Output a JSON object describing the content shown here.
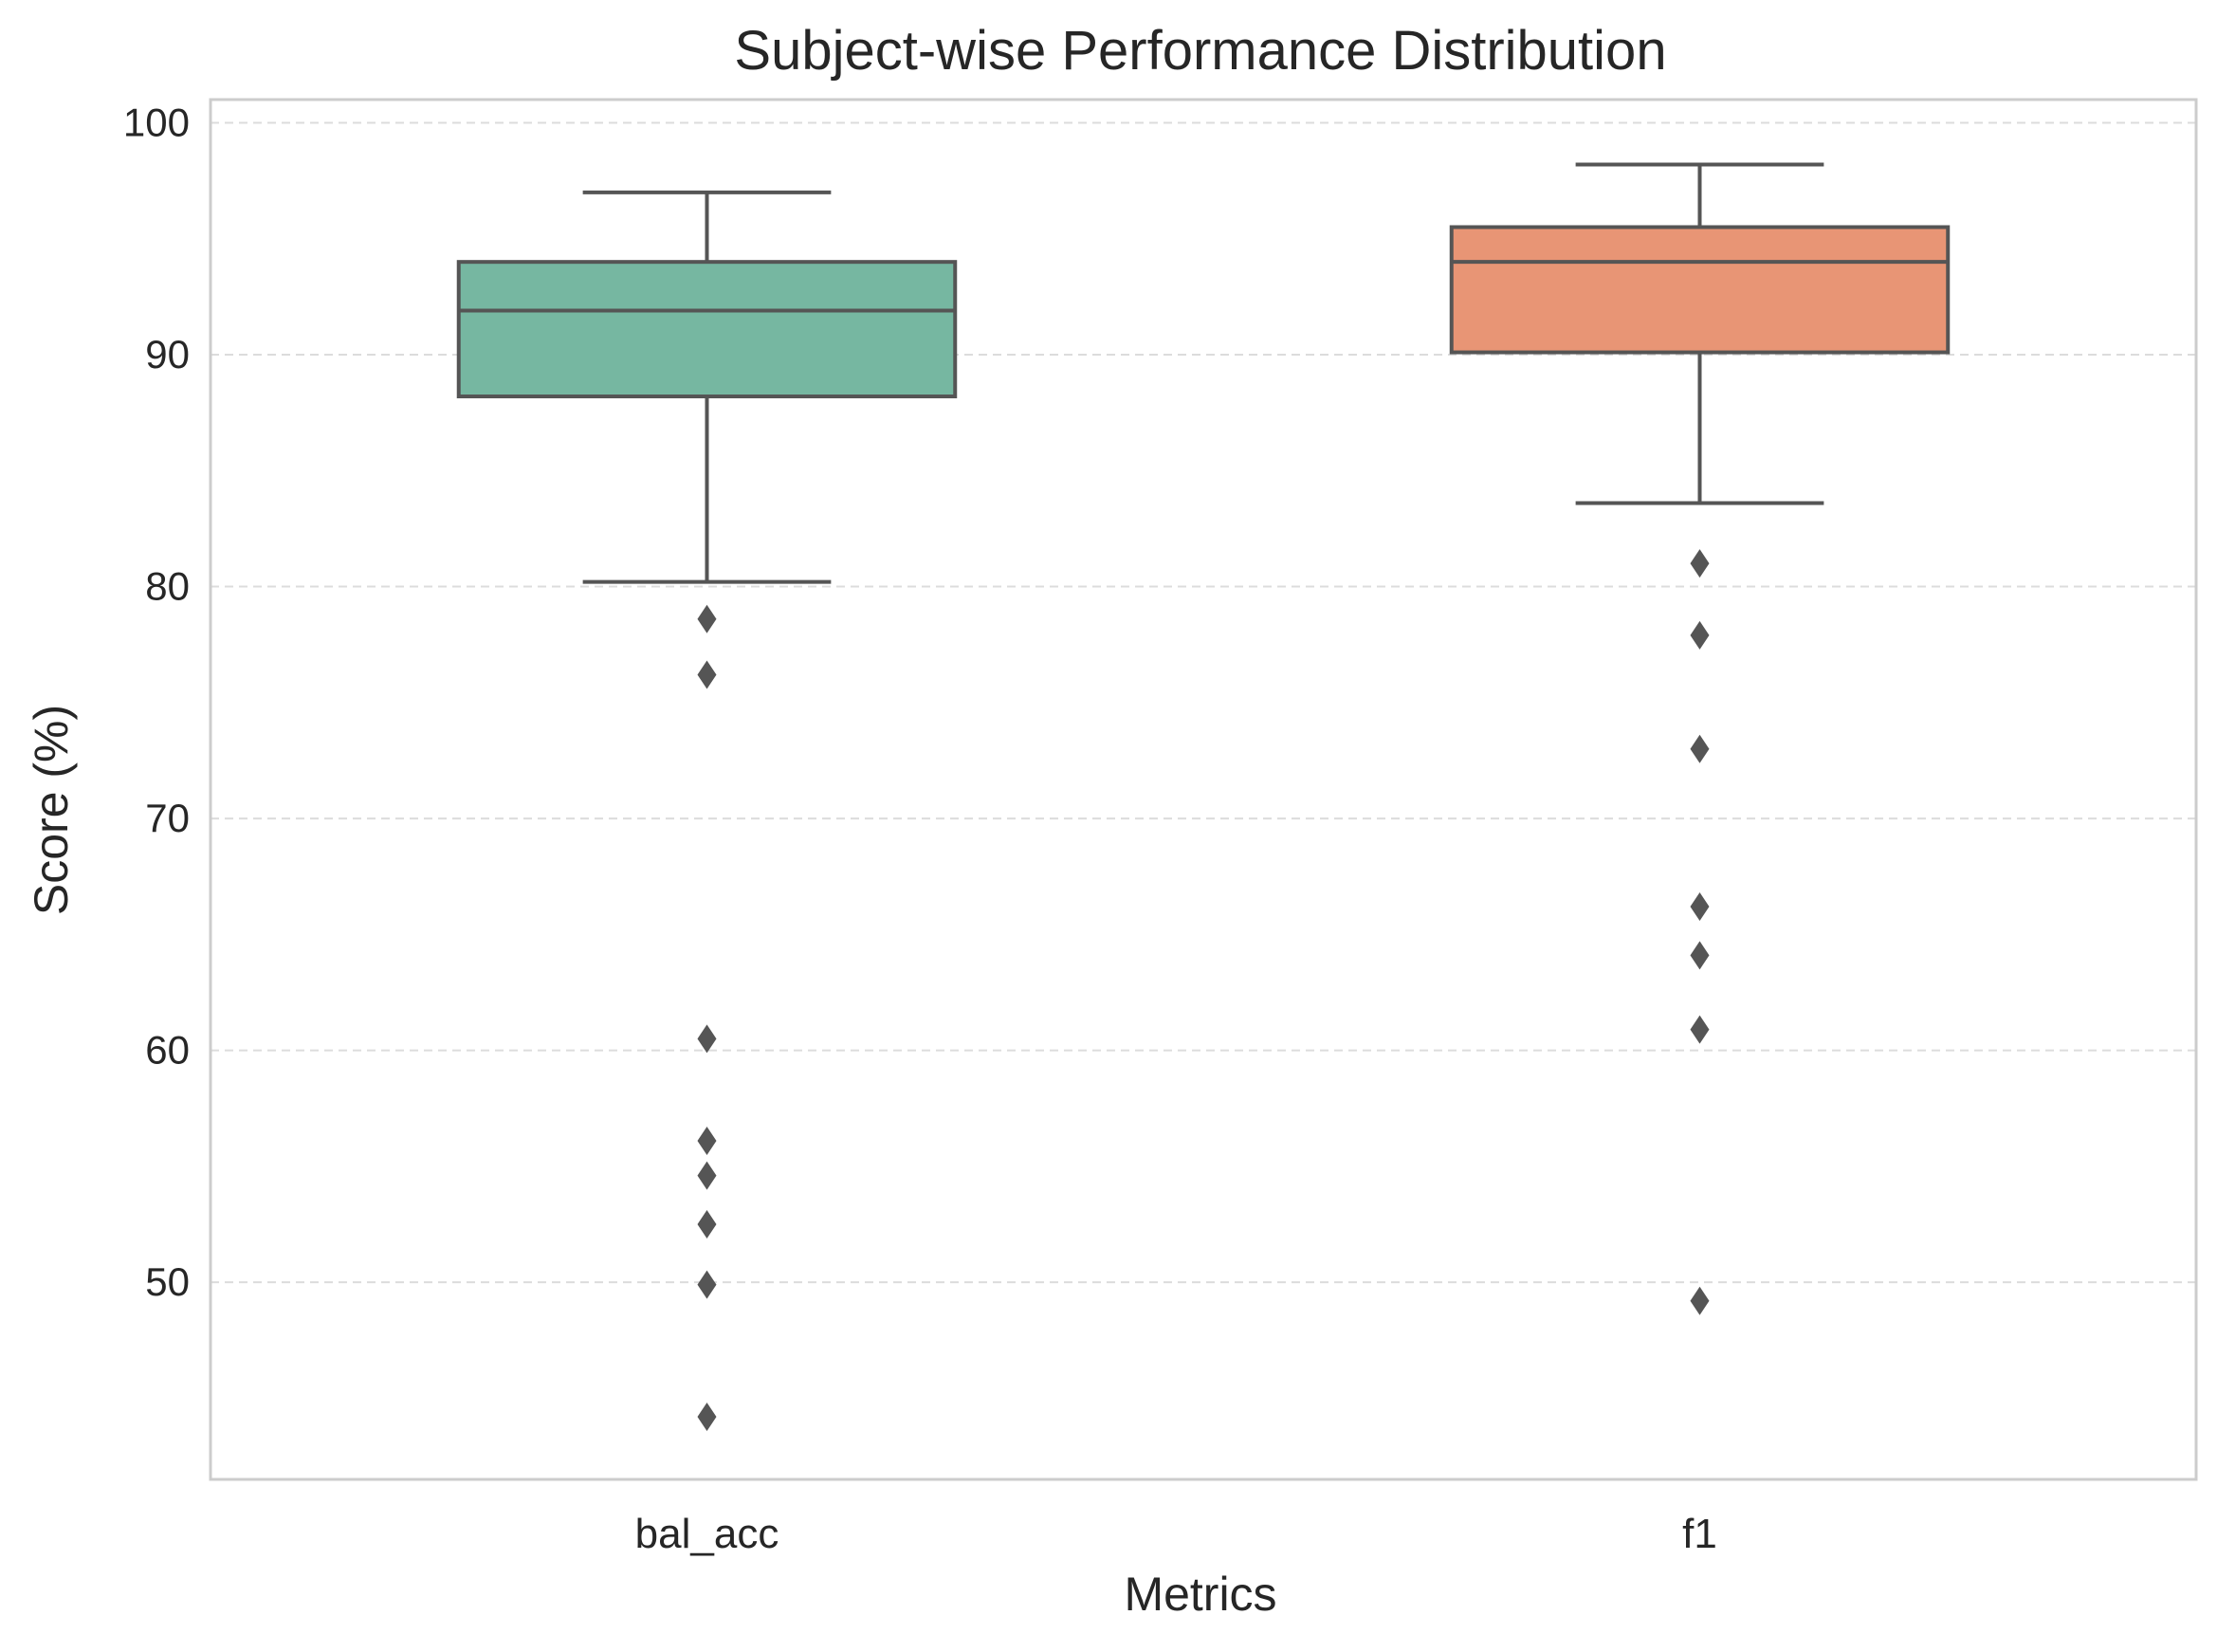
{
  "chart_data": {
    "type": "box",
    "title": "Subject-wise Performance Distribution",
    "xlabel": "Metrics",
    "ylabel": "Score (%)",
    "ylim": [
      41.5,
      101
    ],
    "yticks": [
      50,
      60,
      70,
      80,
      90,
      100
    ],
    "grid": "horizontal-dashed",
    "categories": [
      "bal_acc",
      "f1"
    ],
    "boxes": [
      {
        "category": "bal_acc",
        "color": "#76b7a1",
        "whisker_low": 80.2,
        "q1": 88.2,
        "median": 91.9,
        "q3": 94.0,
        "whisker_high": 97.0,
        "outliers": [
          78.6,
          76.2,
          60.5,
          56.1,
          54.6,
          52.5,
          49.9,
          44.2
        ]
      },
      {
        "category": "f1",
        "color": "#e89575",
        "whisker_low": 83.6,
        "q1": 90.1,
        "median": 94.0,
        "q3": 95.5,
        "whisker_high": 98.2,
        "outliers": [
          81.0,
          77.9,
          73.0,
          66.2,
          64.1,
          60.9,
          49.2
        ]
      }
    ]
  }
}
